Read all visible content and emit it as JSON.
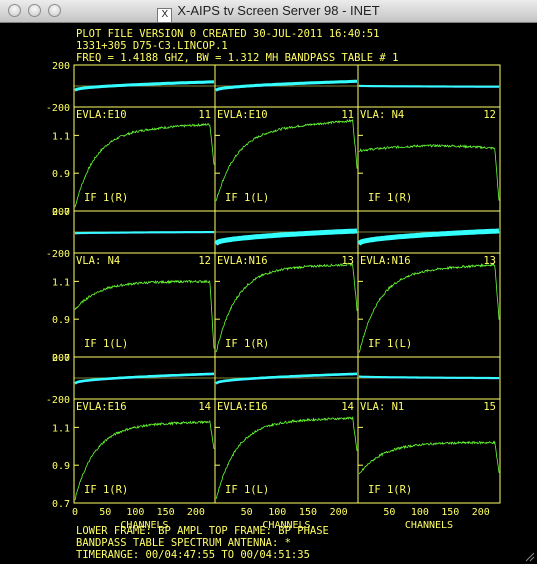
{
  "window": {
    "title": "X-AIPS tv Screen Server 98 - INET",
    "x_icon_label": "X"
  },
  "header": {
    "line1": "PLOT FILE VERSION 0  CREATED 30-JUL-2011 16:40:51",
    "line2": "1331+305    D75-C3.LINCOP.1",
    "line3": "FREQ = 1.4188 GHZ, BW = 1.312 MH    BANDPASS TABLE # 1"
  },
  "footer": {
    "line1": "LOWER FRAME: BP AMPL   TOP FRAME: BP PHASE",
    "line2": "BANDPASS TABLE SPECTRUM    ANTENNA: *",
    "line3": "TIMERANGE: 00/04:47:55 TO 00/04:51:35"
  },
  "axes": {
    "phase_top_label": "200",
    "phase_bottom_label": "-200",
    "amp_ticks": [
      "1.1",
      "0.9",
      "0.7"
    ],
    "channel_ticks": [
      "0",
      "50",
      "100",
      "150",
      "200"
    ],
    "xlabel": "CHANNELS"
  },
  "colors": {
    "background": "#000000",
    "frame": "#ffff66",
    "text": "#ffff66",
    "amplitude": "#66ff33",
    "phase_main": "#33ffff",
    "phase_secondary": "#7777ff"
  },
  "chart_data": {
    "type": "line",
    "xlabel": "CHANNELS",
    "xlim": [
      0,
      230
    ],
    "phase_ylim": [
      -200,
      200
    ],
    "amp_ylim": [
      0.7,
      1.25
    ],
    "panels": [
      {
        "antenna": "EVLA:E10",
        "number": "11",
        "if_label": "IF 1(R)",
        "phase": {
          "start": -40,
          "end": 40,
          "spread": 12
        },
        "amp": {
          "start": 0.72,
          "mid": 1.12,
          "peak": 1.16,
          "edge_drop": 0.95,
          "shape": "rise"
        }
      },
      {
        "antenna": "EVLA:E10",
        "number": "11",
        "if_label": "IF 1(L)",
        "phase": {
          "start": -40,
          "end": 45,
          "spread": 12
        },
        "amp": {
          "start": 0.75,
          "mid": 1.12,
          "peak": 1.18,
          "edge_drop": 0.93,
          "shape": "rise"
        }
      },
      {
        "antenna": "VLA: N4",
        "number": "12",
        "if_label": "IF 1(R)",
        "phase": {
          "start": 2,
          "end": -6,
          "spread": 4
        },
        "amp": {
          "start": 1.02,
          "mid": 1.03,
          "peak": 1.04,
          "edge_drop": 0.75,
          "shape": "flat"
        }
      },
      {
        "antenna": "VLA: N4",
        "number": "12",
        "if_label": "IF 1(L)",
        "phase": {
          "start": -12,
          "end": 0,
          "spread": 4
        },
        "amp": {
          "start": 0.95,
          "mid": 1.1,
          "peak": 1.11,
          "edge_drop": 0.74,
          "shape": "flatrise"
        }
      },
      {
        "antenna": "EVLA:N16",
        "number": "13",
        "if_label": "IF 1(R)",
        "phase": {
          "start": -110,
          "end": 10,
          "spread": 20
        },
        "amp": {
          "start": 0.72,
          "mid": 1.17,
          "peak": 1.19,
          "edge_drop": 0.95,
          "shape": "rise"
        }
      },
      {
        "antenna": "EVLA:N16",
        "number": "13",
        "if_label": "IF 1(L)",
        "phase": {
          "start": -110,
          "end": 10,
          "spread": 20
        },
        "amp": {
          "start": 0.72,
          "mid": 1.15,
          "peak": 1.19,
          "edge_drop": 0.9,
          "shape": "rise"
        }
      },
      {
        "antenna": "EVLA:E16",
        "number": "14",
        "if_label": "IF 1(R)",
        "phase": {
          "start": -50,
          "end": 40,
          "spread": 10
        },
        "amp": {
          "start": 0.72,
          "mid": 1.11,
          "peak": 1.13,
          "edge_drop": 0.98,
          "shape": "rise"
        }
      },
      {
        "antenna": "EVLA:E16",
        "number": "14",
        "if_label": "IF 1(L)",
        "phase": {
          "start": -50,
          "end": 40,
          "spread": 10
        },
        "amp": {
          "start": 0.72,
          "mid": 1.13,
          "peak": 1.15,
          "edge_drop": 0.97,
          "shape": "rise"
        }
      },
      {
        "antenna": "VLA: N1",
        "number": "15",
        "if_label": "IF 1(R)",
        "phase": {
          "start": 15,
          "end": 0,
          "spread": 5
        },
        "amp": {
          "start": 0.85,
          "mid": 1.02,
          "peak": 1.03,
          "edge_drop": 0.86,
          "shape": "flatrise"
        }
      }
    ]
  }
}
